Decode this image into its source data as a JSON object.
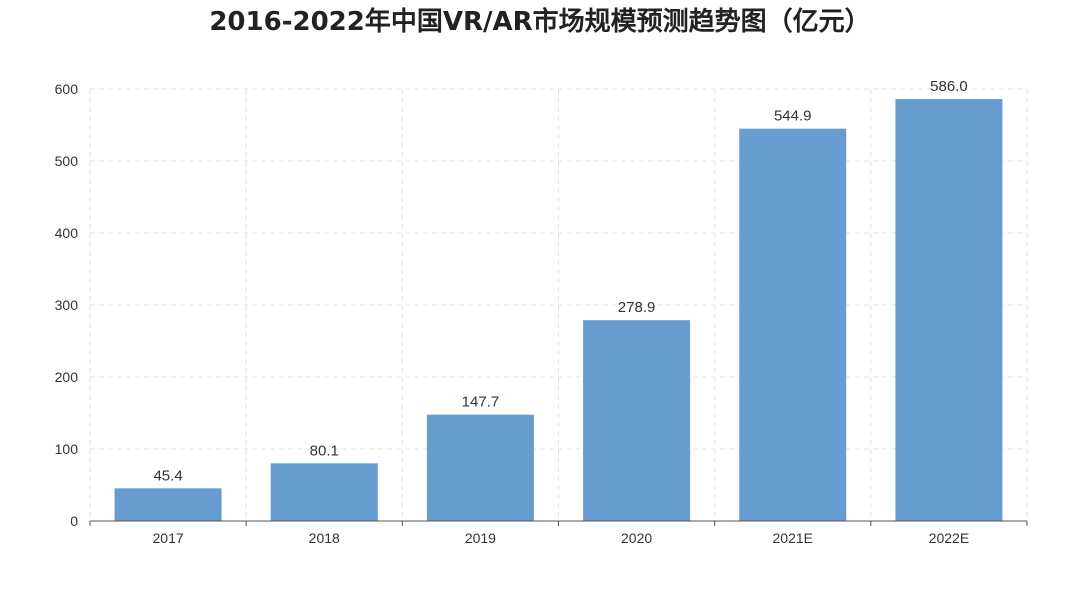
{
  "chart_data": {
    "type": "bar",
    "title": "2016-2022年中国VR/AR市场规模预测趋势图（亿元）",
    "categories": [
      "2017",
      "2018",
      "2019",
      "2020",
      "2021E",
      "2022E"
    ],
    "values": [
      45.4,
      80.1,
      147.7,
      278.9,
      544.9,
      586.0
    ],
    "value_labels": [
      "45.4",
      "80.1",
      "147.7",
      "278.9",
      "544.9",
      "586.0"
    ],
    "yticks": [
      0,
      100,
      200,
      300,
      400,
      500,
      600
    ],
    "ylim": [
      0,
      600
    ],
    "xlabel": "",
    "ylabel": "",
    "grid": true,
    "bar_color": "#669ccf"
  }
}
